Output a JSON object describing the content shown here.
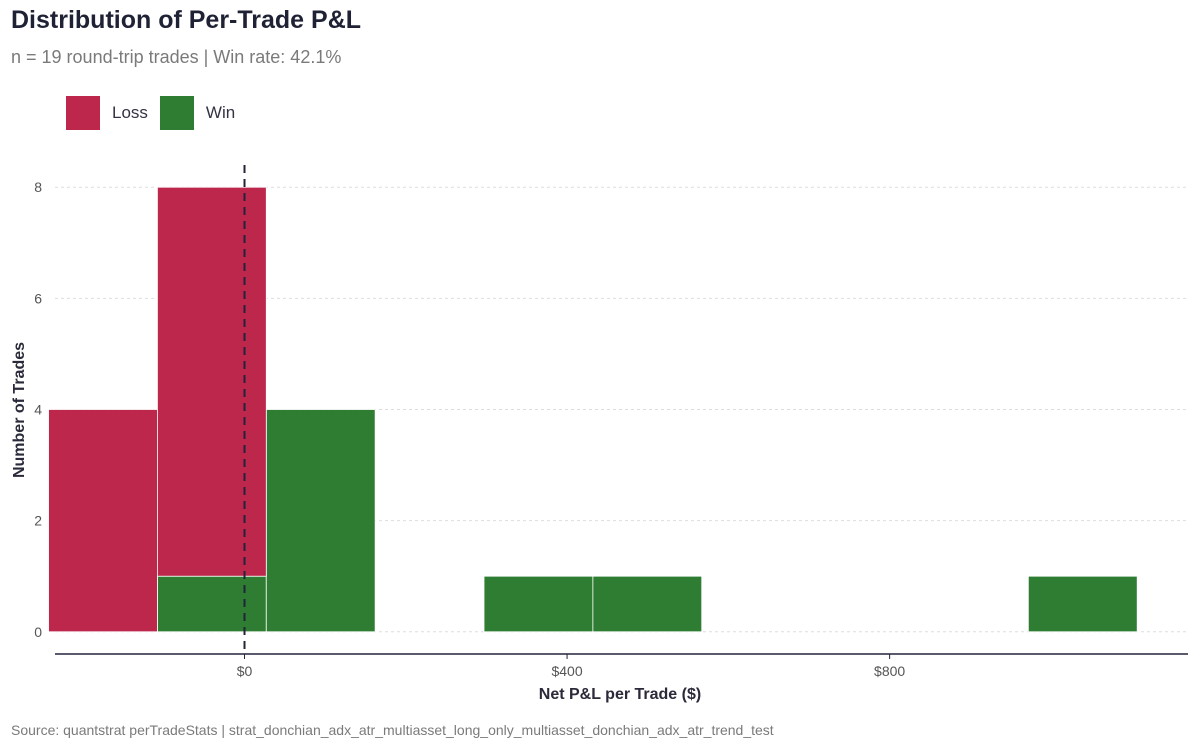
{
  "title": "Distribution of Per-Trade P&L",
  "subtitle": "n = 19 round-trip trades  |  Win rate: 42.1%",
  "caption": "Source: quantstrat perTradeStats | strat_donchian_adx_atr_multiasset_long_only_multiasset_donchian_adx_atr_trend_test",
  "legend": {
    "items": [
      {
        "label": "Loss",
        "color": "#bc274b"
      },
      {
        "label": "Win",
        "color": "#2f7d32"
      }
    ]
  },
  "chart_data": {
    "type": "histogram",
    "xlabel": "Net P&L per Trade ($)",
    "ylabel": "Number of Trades",
    "xlim": [
      -235,
      1170
    ],
    "ylim": [
      -0.4,
      8.4
    ],
    "x_ticks": [
      {
        "value": 0,
        "label": "$0"
      },
      {
        "value": 400,
        "label": "$400"
      },
      {
        "value": 800,
        "label": "$800"
      }
    ],
    "y_ticks": [
      {
        "value": 0,
        "label": "0"
      },
      {
        "value": 2,
        "label": "2"
      },
      {
        "value": 4,
        "label": "4"
      },
      {
        "value": 6,
        "label": "6"
      },
      {
        "value": 8,
        "label": "8"
      }
    ],
    "vline_x": 0,
    "bin_width": 135,
    "stacked": true,
    "series": [
      {
        "name": "Loss",
        "color": "#bc274b",
        "bins": [
          {
            "x0": -243,
            "x1": -108,
            "count": 4
          },
          {
            "x0": -108,
            "x1": 27,
            "count": 7
          }
        ]
      },
      {
        "name": "Win",
        "color": "#2f7d32",
        "bins": [
          {
            "x0": -108,
            "x1": 27,
            "count": 1
          },
          {
            "x0": 27,
            "x1": 162,
            "count": 4
          },
          {
            "x0": 297,
            "x1": 432,
            "count": 1
          },
          {
            "x0": 432,
            "x1": 567,
            "count": 1
          },
          {
            "x0": 972,
            "x1": 1107,
            "count": 1
          }
        ]
      }
    ],
    "grid": "horizontal",
    "legend_position": "top-left"
  }
}
